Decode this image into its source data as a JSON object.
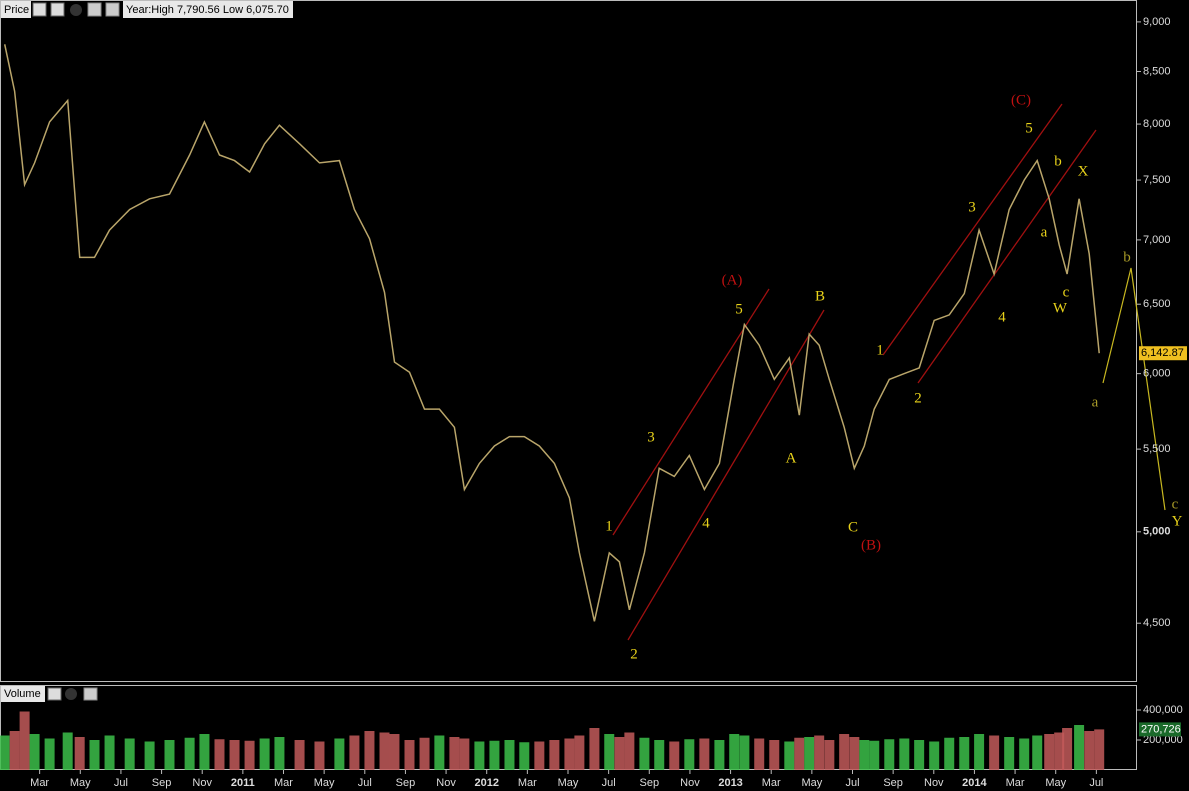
{
  "header": {
    "price_label": "Price",
    "info": "Year:High 7,790.56 Low 6,075.70",
    "volume_label": "Volume"
  },
  "chart_data": [
    {
      "type": "line",
      "color": "#b9a56a",
      "log_scale": true,
      "x": [
        0.28,
        0.77,
        1.26,
        1.75,
        2.49,
        3.38,
        3.97,
        4.7,
        5.44,
        6.43,
        7.41,
        8.39,
        9.38,
        10.11,
        10.85,
        11.59,
        12.33,
        13.07,
        13.8,
        14.79,
        15.77,
        16.75,
        17.49,
        18.23,
        18.97,
        19.46,
        20.2,
        20.94,
        21.67,
        22.41,
        22.9,
        23.64,
        24.38,
        25.12,
        25.85,
        26.59,
        27.33,
        28.07,
        28.56,
        29.3,
        30.03,
        30.53,
        31.02,
        31.76,
        32.49,
        33.23,
        33.97,
        34.71,
        35.45,
        36.18,
        36.68,
        37.41,
        38.15,
        38.89,
        39.38,
        39.87,
        40.36,
        40.86,
        41.59,
        42.09,
        42.58,
        43.07,
        43.81,
        44.55,
        45.28,
        46.02,
        46.76,
        47.5,
        48.23,
        48.97,
        49.71,
        50.45,
        51.09,
        51.68,
        52.17,
        52.56,
        53.15,
        53.65,
        54.14
      ],
      "values": [
        8770,
        8310,
        7460,
        7650,
        8020,
        8220,
        6860,
        6860,
        7080,
        7250,
        7340,
        7380,
        7720,
        8020,
        7720,
        7670,
        7570,
        7820,
        7990,
        7820,
        7650,
        7670,
        7250,
        7010,
        6590,
        6080,
        6010,
        5760,
        5760,
        5640,
        5250,
        5410,
        5520,
        5580,
        5580,
        5520,
        5410,
        5200,
        4880,
        4510,
        4880,
        4830,
        4570,
        4880,
        5380,
        5330,
        5460,
        5250,
        5410,
        5960,
        6350,
        6200,
        5960,
        6110,
        5720,
        6280,
        6200,
        5960,
        5640,
        5380,
        5520,
        5760,
        5960,
        6000,
        6040,
        6380,
        6420,
        6580,
        7080,
        6730,
        7250,
        7500,
        7670,
        7340,
        6960,
        6730,
        7340,
        6890,
        6142.87
      ],
      "xlim": [
        0,
        56
      ],
      "ylim": [
        4210,
        9230
      ],
      "yticks": [
        {
          "value": 9000,
          "label": "9,000"
        },
        {
          "value": 8500,
          "label": "8,500"
        },
        {
          "value": 8000,
          "label": "8,000"
        },
        {
          "value": 7500,
          "label": "7,500"
        },
        {
          "value": 7000,
          "label": "7,000"
        },
        {
          "value": 6500,
          "label": "6,500"
        },
        {
          "value": 6000,
          "label": "6,000"
        },
        {
          "value": 5500,
          "label": "5,500"
        },
        {
          "value": 5000,
          "label": "5,000"
        },
        {
          "value": 4500,
          "label": "4,500"
        }
      ],
      "last_value": {
        "value": 6142.87,
        "label": "6,142.87"
      },
      "annotations": [
        {
          "text": "(A)",
          "color": "#c01010"
        },
        {
          "text": "5",
          "color": "#e8d21a"
        },
        {
          "text": "3",
          "color": "#e8d21a"
        },
        {
          "text": "1",
          "color": "#e8d21a"
        },
        {
          "text": "4",
          "color": "#e8d21a"
        },
        {
          "text": "2",
          "color": "#e8d21a"
        },
        {
          "text": "B",
          "color": "#e8d21a"
        },
        {
          "text": "A",
          "color": "#e8d21a"
        },
        {
          "text": "C",
          "color": "#e8d21a"
        },
        {
          "text": "(B)",
          "color": "#c01010"
        },
        {
          "text": "1",
          "color": "#e8d21a"
        },
        {
          "text": "2",
          "color": "#e8d21a"
        },
        {
          "text": "3",
          "color": "#e8d21a"
        },
        {
          "text": "4",
          "color": "#e8d21a"
        },
        {
          "text": "5",
          "color": "#e8d21a"
        },
        {
          "text": "(C)",
          "color": "#c01010"
        },
        {
          "text": "a",
          "color": "#e8d21a"
        },
        {
          "text": "b",
          "color": "#e8d21a"
        },
        {
          "text": "X",
          "color": "#e8d21a"
        },
        {
          "text": "c",
          "color": "#e8d21a"
        },
        {
          "text": "W",
          "color": "#e8d21a"
        },
        {
          "text": "b",
          "color": "#a89a28"
        },
        {
          "text": "a",
          "color": "#a89a28"
        },
        {
          "text": "c",
          "color": "#a89a28"
        },
        {
          "text": "Y",
          "color": "#e8d21a"
        }
      ]
    },
    {
      "type": "bar",
      "up_color": "#3cc04a",
      "down_color": "#c25a5a",
      "x": [
        0.28,
        0.77,
        1.26,
        1.75,
        2.49,
        3.38,
        3.97,
        4.7,
        5.44,
        6.43,
        7.41,
        8.39,
        9.38,
        10.11,
        10.85,
        11.59,
        12.33,
        13.07,
        13.8,
        14.79,
        15.77,
        16.75,
        17.49,
        18.23,
        18.97,
        19.46,
        20.2,
        20.94,
        21.67,
        22.41,
        22.9,
        23.64,
        24.38,
        25.12,
        25.85,
        26.59,
        27.33,
        28.07,
        28.56,
        29.3,
        30.03,
        30.53,
        31.02,
        31.76,
        32.49,
        33.23,
        33.97,
        34.71,
        35.45,
        36.18,
        36.68,
        37.41,
        38.15,
        38.89,
        39.38,
        39.87,
        40.36,
        40.86,
        41.59,
        42.09,
        42.58,
        43.07,
        43.81,
        44.55,
        45.28,
        46.02,
        46.76,
        47.5,
        48.23,
        48.97,
        49.71,
        50.45,
        51.09,
        51.68,
        52.17,
        52.56,
        53.15,
        53.65,
        54.14
      ],
      "values": [
        230000,
        260000,
        390000,
        240000,
        210000,
        250000,
        220000,
        200000,
        230000,
        210000,
        190000,
        200000,
        215000,
        240000,
        205000,
        200000,
        195000,
        210000,
        220000,
        200000,
        190000,
        210000,
        230000,
        260000,
        250000,
        240000,
        200000,
        215000,
        230000,
        220000,
        210000,
        190000,
        195000,
        200000,
        185000,
        190000,
        200000,
        210000,
        230000,
        280000,
        240000,
        220000,
        250000,
        215000,
        200000,
        190000,
        205000,
        210000,
        200000,
        240000,
        230000,
        210000,
        200000,
        190000,
        215000,
        220000,
        230000,
        200000,
        240000,
        220000,
        200000,
        195000,
        205000,
        210000,
        200000,
        190000,
        215000,
        220000,
        240000,
        230000,
        220000,
        210000,
        230000,
        240000,
        250000,
        280000,
        300000,
        260000,
        270726
      ],
      "xlim": [
        0,
        56
      ],
      "ylim": [
        0,
        560000
      ],
      "yticks": [
        {
          "value": 400000,
          "label": "400,000"
        },
        {
          "value": 200000,
          "label": "200,000"
        }
      ],
      "last_value": {
        "value": 270726,
        "label": "270,726"
      },
      "xticks": [
        {
          "value": 2,
          "label": "Mar"
        },
        {
          "value": 4,
          "label": "May"
        },
        {
          "value": 6,
          "label": "Jul"
        },
        {
          "value": 8,
          "label": "Sep"
        },
        {
          "value": 10,
          "label": "Nov"
        },
        {
          "value": 12,
          "label": "2011"
        },
        {
          "value": 14,
          "label": "Mar"
        },
        {
          "value": 16,
          "label": "May"
        },
        {
          "value": 18,
          "label": "Jul"
        },
        {
          "value": 20,
          "label": "Sep"
        },
        {
          "value": 22,
          "label": "Nov"
        },
        {
          "value": 24,
          "label": "2012"
        },
        {
          "value": 26,
          "label": "Mar"
        },
        {
          "value": 28,
          "label": "May"
        },
        {
          "value": 30,
          "label": "Jul"
        },
        {
          "value": 32,
          "label": "Sep"
        },
        {
          "value": 34,
          "label": "Nov"
        },
        {
          "value": 36,
          "label": "2013"
        },
        {
          "value": 38,
          "label": "Mar"
        },
        {
          "value": 40,
          "label": "May"
        },
        {
          "value": 42,
          "label": "Jul"
        },
        {
          "value": 44,
          "label": "Sep"
        },
        {
          "value": 46,
          "label": "Nov"
        },
        {
          "value": 48,
          "label": "2014"
        },
        {
          "value": 50,
          "label": "Mar"
        },
        {
          "value": 52,
          "label": "May"
        },
        {
          "value": 54,
          "label": "Jul"
        }
      ]
    }
  ]
}
